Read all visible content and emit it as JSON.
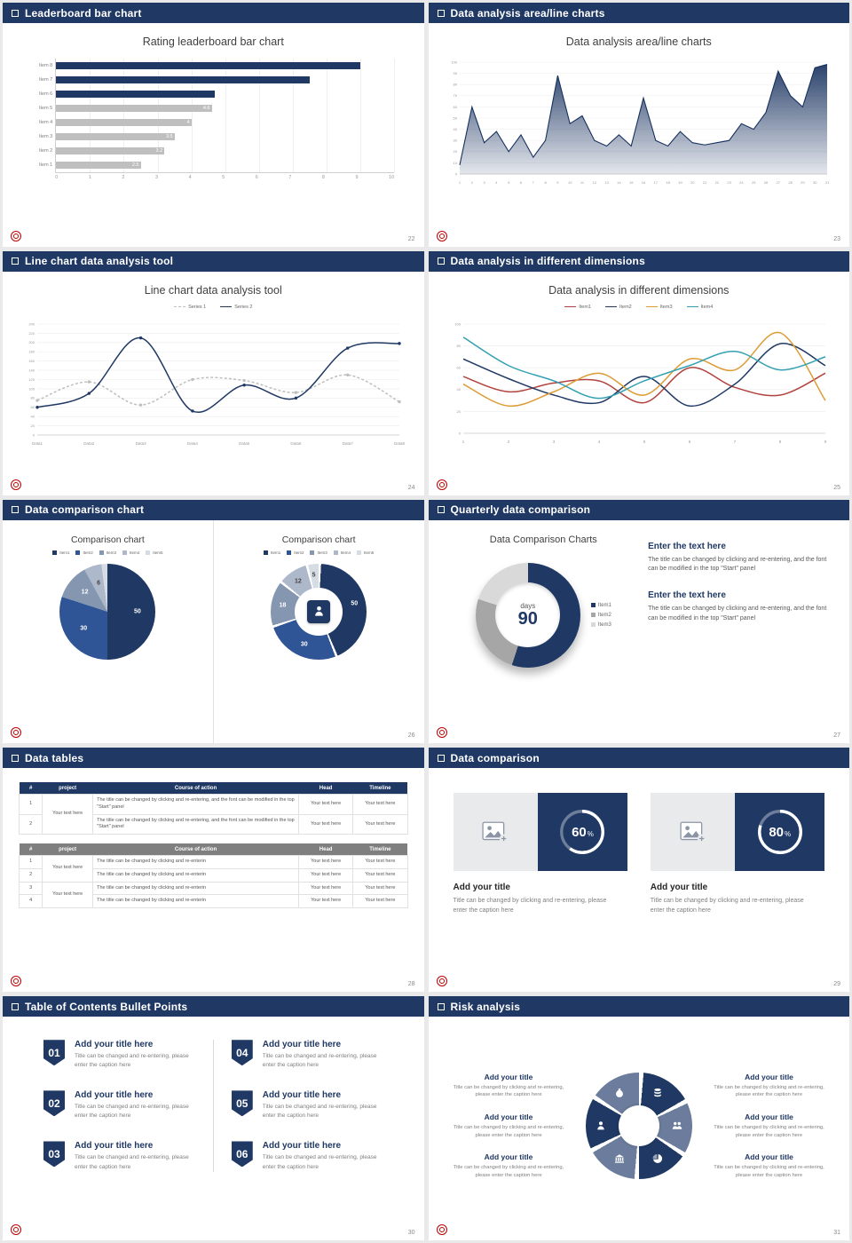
{
  "theme": {
    "navy": "#1f3864",
    "slate": "#6b7c9c",
    "bar_gray": "#bfbfbf",
    "logo_red": "#c00000",
    "background": "#e9e9e9"
  },
  "slides": [
    {
      "header": "Leaderboard bar chart",
      "page": "22",
      "chart_title": "Rating leaderboard bar chart",
      "chart_data": {
        "type": "bar",
        "orientation": "horizontal",
        "categories": [
          "Item 8",
          "Item 7",
          "Item 6",
          "Item 5",
          "Item 4",
          "Item 3",
          "Item 2",
          "Item 1"
        ],
        "values": [
          9,
          7.5,
          4.7,
          4.6,
          4,
          3.5,
          3.2,
          2.5
        ],
        "bar_labels": [
          "",
          "",
          "",
          "4.6",
          "4",
          "3.5",
          "3.2",
          "2.5"
        ],
        "bar_colors": [
          "#1f3864",
          "#1f3864",
          "#1f3864",
          "#bfbfbf",
          "#bfbfbf",
          "#bfbfbf",
          "#bfbfbf",
          "#bfbfbf"
        ],
        "xlim": [
          0,
          10
        ],
        "xticks": [
          "0",
          "1",
          "2",
          "3",
          "4",
          "5",
          "6",
          "7",
          "8",
          "9",
          "10"
        ]
      }
    },
    {
      "header": "Data analysis area/line charts",
      "page": "23",
      "chart_title": "Data analysis area/line charts",
      "chart_data": {
        "type": "area",
        "color": "#1f3864",
        "x": [
          1,
          2,
          3,
          4,
          5,
          6,
          7,
          8,
          9,
          10,
          11,
          12,
          13,
          14,
          15,
          16,
          17,
          18,
          19,
          20,
          21,
          22,
          23,
          24,
          25,
          26,
          27,
          28,
          29,
          30,
          31
        ],
        "values": [
          8,
          60,
          28,
          38,
          20,
          35,
          15,
          30,
          88,
          45,
          52,
          30,
          25,
          35,
          25,
          68,
          30,
          25,
          38,
          28,
          26,
          28,
          30,
          45,
          40,
          55,
          92,
          70,
          60,
          95,
          98
        ],
        "ylim": [
          0,
          100
        ],
        "yticks": [
          0,
          10,
          20,
          30,
          40,
          50,
          60,
          70,
          80,
          90,
          100
        ]
      }
    },
    {
      "header": "Line chart data analysis tool",
      "page": "24",
      "chart_title": "Line chart data analysis tool",
      "chart_data": {
        "type": "line",
        "categories": [
          "Data1",
          "Data2",
          "Data3",
          "Data4",
          "Data5",
          "Data6",
          "Data7",
          "Data8"
        ],
        "ylim": [
          0,
          240
        ],
        "yticks": [
          0,
          20,
          40,
          60,
          80,
          100,
          120,
          140,
          160,
          180,
          200,
          220,
          240
        ],
        "series": [
          {
            "name": "Series 1",
            "color": "#bfbfbf",
            "dash": true,
            "values": [
              75,
              115,
              65,
              120,
              118,
              92,
              130,
              72
            ]
          },
          {
            "name": "Series 2",
            "color": "#1f3864",
            "dash": false,
            "values": [
              60,
              90,
              210,
              52,
              108,
              80,
              188,
              198
            ]
          }
        ]
      }
    },
    {
      "header": "Data analysis in different dimensions",
      "page": "25",
      "chart_title": "Data analysis in different dimensions",
      "chart_data": {
        "type": "line",
        "x": [
          1,
          2,
          3,
          4,
          5,
          6,
          7,
          8,
          9
        ],
        "ylim": [
          0,
          100
        ],
        "yticks": [
          0,
          20,
          40,
          60,
          80,
          100
        ],
        "series": [
          {
            "name": "Item1",
            "color": "#b2423e",
            "dash": false,
            "values": [
              52,
              38,
              46,
              48,
              28,
              60,
              42,
              35,
              55
            ]
          },
          {
            "name": "Item2",
            "color": "#1f3864",
            "dash": false,
            "values": [
              68,
              50,
              35,
              28,
              52,
              25,
              45,
              82,
              62
            ]
          },
          {
            "name": "Item3",
            "color": "#dd9b33",
            "dash": false,
            "values": [
              45,
              25,
              38,
              55,
              35,
              68,
              58,
              92,
              30
            ]
          },
          {
            "name": "Item4",
            "color": "#33a0b2",
            "dash": false,
            "values": [
              88,
              62,
              48,
              32,
              48,
              62,
              75,
              58,
              70
            ]
          }
        ]
      }
    },
    {
      "header": "Data comparison chart",
      "page": "26",
      "legend": [
        "Item1",
        "Item2",
        "Item3",
        "Item4",
        "Item5"
      ],
      "slice_colors": [
        "#1f3864",
        "#2f5597",
        "#8496b0",
        "#adb9ca",
        "#d6dce4"
      ],
      "charts": [
        {
          "title": "Comparison chart",
          "type": "pie",
          "values": [
            50,
            30,
            12,
            6,
            2
          ],
          "labels": [
            "50",
            "30",
            "12",
            "6",
            ""
          ]
        },
        {
          "title": "Comparison chart",
          "type": "donut",
          "values": [
            50,
            30,
            18,
            12,
            5
          ],
          "labels": [
            "50",
            "30",
            "18",
            "12",
            "5"
          ]
        }
      ]
    },
    {
      "header": "Quarterly data comparison",
      "page": "27",
      "heading": "Data Comparison Charts",
      "chart_data": {
        "type": "donut",
        "values": [
          55,
          25,
          20
        ],
        "colors": [
          "#1f3864",
          "#a6a6a6",
          "#d9d9d9"
        ],
        "legend": [
          "Item1",
          "Item2",
          "Item3"
        ],
        "center_label": "days",
        "center_value": "90"
      },
      "blocks": [
        {
          "title": "Enter the text here",
          "body": "The title can be changed by clicking and re-entering, and the font can be modified in the top \"Start\" panel"
        },
        {
          "title": "Enter the text here",
          "body": "The title can be changed by clicking and re-entering, and the font can be modified in the top \"Start\" panel"
        }
      ]
    },
    {
      "header": "Data tables",
      "page": "28",
      "table1": {
        "columns": [
          "#",
          "project",
          "Course of action",
          "Head",
          "Timeline"
        ],
        "project_merged": "Your text here",
        "rows": [
          {
            "num": "1",
            "course": "The title can be changed by clicking and re-entering, and the font can be modified in the top \"Start\" panel",
            "head": "Your text here",
            "timeline": "Your text here"
          },
          {
            "num": "2",
            "course": "The title can be changed by clicking and re-entering, and the font can be modified in the top \"Start\" panel",
            "head": "Your text here",
            "timeline": "Your text here"
          }
        ]
      },
      "table2": {
        "columns": [
          "#",
          "project",
          "Course of action",
          "Head",
          "Timeline"
        ],
        "project_merged_a": "Your text here",
        "project_merged_b": "Your text here",
        "rows": [
          {
            "num": "1",
            "course": "The title can be changed by clicking and re-enterin",
            "head": "Your text here",
            "timeline": "Your text here"
          },
          {
            "num": "2",
            "course": "The title can be changed by clicking and re-enterin",
            "head": "Your text here",
            "timeline": "Your text here"
          },
          {
            "num": "3",
            "course": "The title can be changed by clicking and re-enterin",
            "head": "Your text here",
            "timeline": "Your text here"
          },
          {
            "num": "4",
            "course": "The title can be changed by clicking and re-enterin",
            "head": "Your text here",
            "timeline": "Your text here"
          }
        ]
      }
    },
    {
      "header": "Data comparison",
      "page": "29",
      "cards": [
        {
          "percent": 60,
          "percent_suffix": "%",
          "title": "Add your title",
          "caption": "Title can be changed by clicking and re-entering, please enter the caption here"
        },
        {
          "percent": 80,
          "percent_suffix": "%",
          "title": "Add your title",
          "caption": "Title can be changed by clicking and re-entering, please enter the caption here"
        }
      ]
    },
    {
      "header": "Table of Contents Bullet Points",
      "page": "30",
      "items": [
        {
          "num": "01",
          "title": "Add your title here",
          "caption": "Title can be changed and re-entering, please enter the caption here"
        },
        {
          "num": "02",
          "title": "Add your title here",
          "caption": "Title can be changed and re-entering, please enter the caption here"
        },
        {
          "num": "03",
          "title": "Add your title here",
          "caption": "Title can be changed and re-entering, please enter the caption here"
        },
        {
          "num": "04",
          "title": "Add your title here",
          "caption": "Title can be changed and re-entering, please enter the caption here"
        },
        {
          "num": "05",
          "title": "Add your title here",
          "caption": "Title can be changed and re-entering, please enter the caption here"
        },
        {
          "num": "06",
          "title": "Add your title here",
          "caption": "Title can be changed and re-entering, please enter the caption here"
        }
      ]
    },
    {
      "header": "Risk analysis",
      "page": "31",
      "blocks_left": [
        {
          "title": "Add your title",
          "caption": "Title can be changed by clicking and re-entering, please enter the caption here"
        },
        {
          "title": "Add your title",
          "caption": "Title can be changed by clicking and re-entering, please enter the caption here"
        },
        {
          "title": "Add your title",
          "caption": "Title can be changed by clicking and re-entering, please enter the caption here"
        }
      ],
      "blocks_right": [
        {
          "title": "Add your title",
          "caption": "Title can be changed by clicking and re-entering, please enter the caption here"
        },
        {
          "title": "Add your title",
          "caption": "Title can be changed by clicking and re-entering, please enter the caption here"
        },
        {
          "title": "Add your title",
          "caption": "Title can be changed by clicking and re-entering, please enter the caption here"
        }
      ],
      "flower": {
        "segments": [
          {
            "icon": "coins-icon",
            "color": "#1f3864"
          },
          {
            "icon": "people-icon",
            "color": "#6b7c9c"
          },
          {
            "icon": "pie-chart-icon",
            "color": "#1f3864"
          },
          {
            "icon": "bank-icon",
            "color": "#6b7c9c"
          },
          {
            "icon": "person-icon",
            "color": "#1f3864"
          },
          {
            "icon": "money-bag-icon",
            "color": "#6b7c9c"
          }
        ]
      }
    }
  ]
}
